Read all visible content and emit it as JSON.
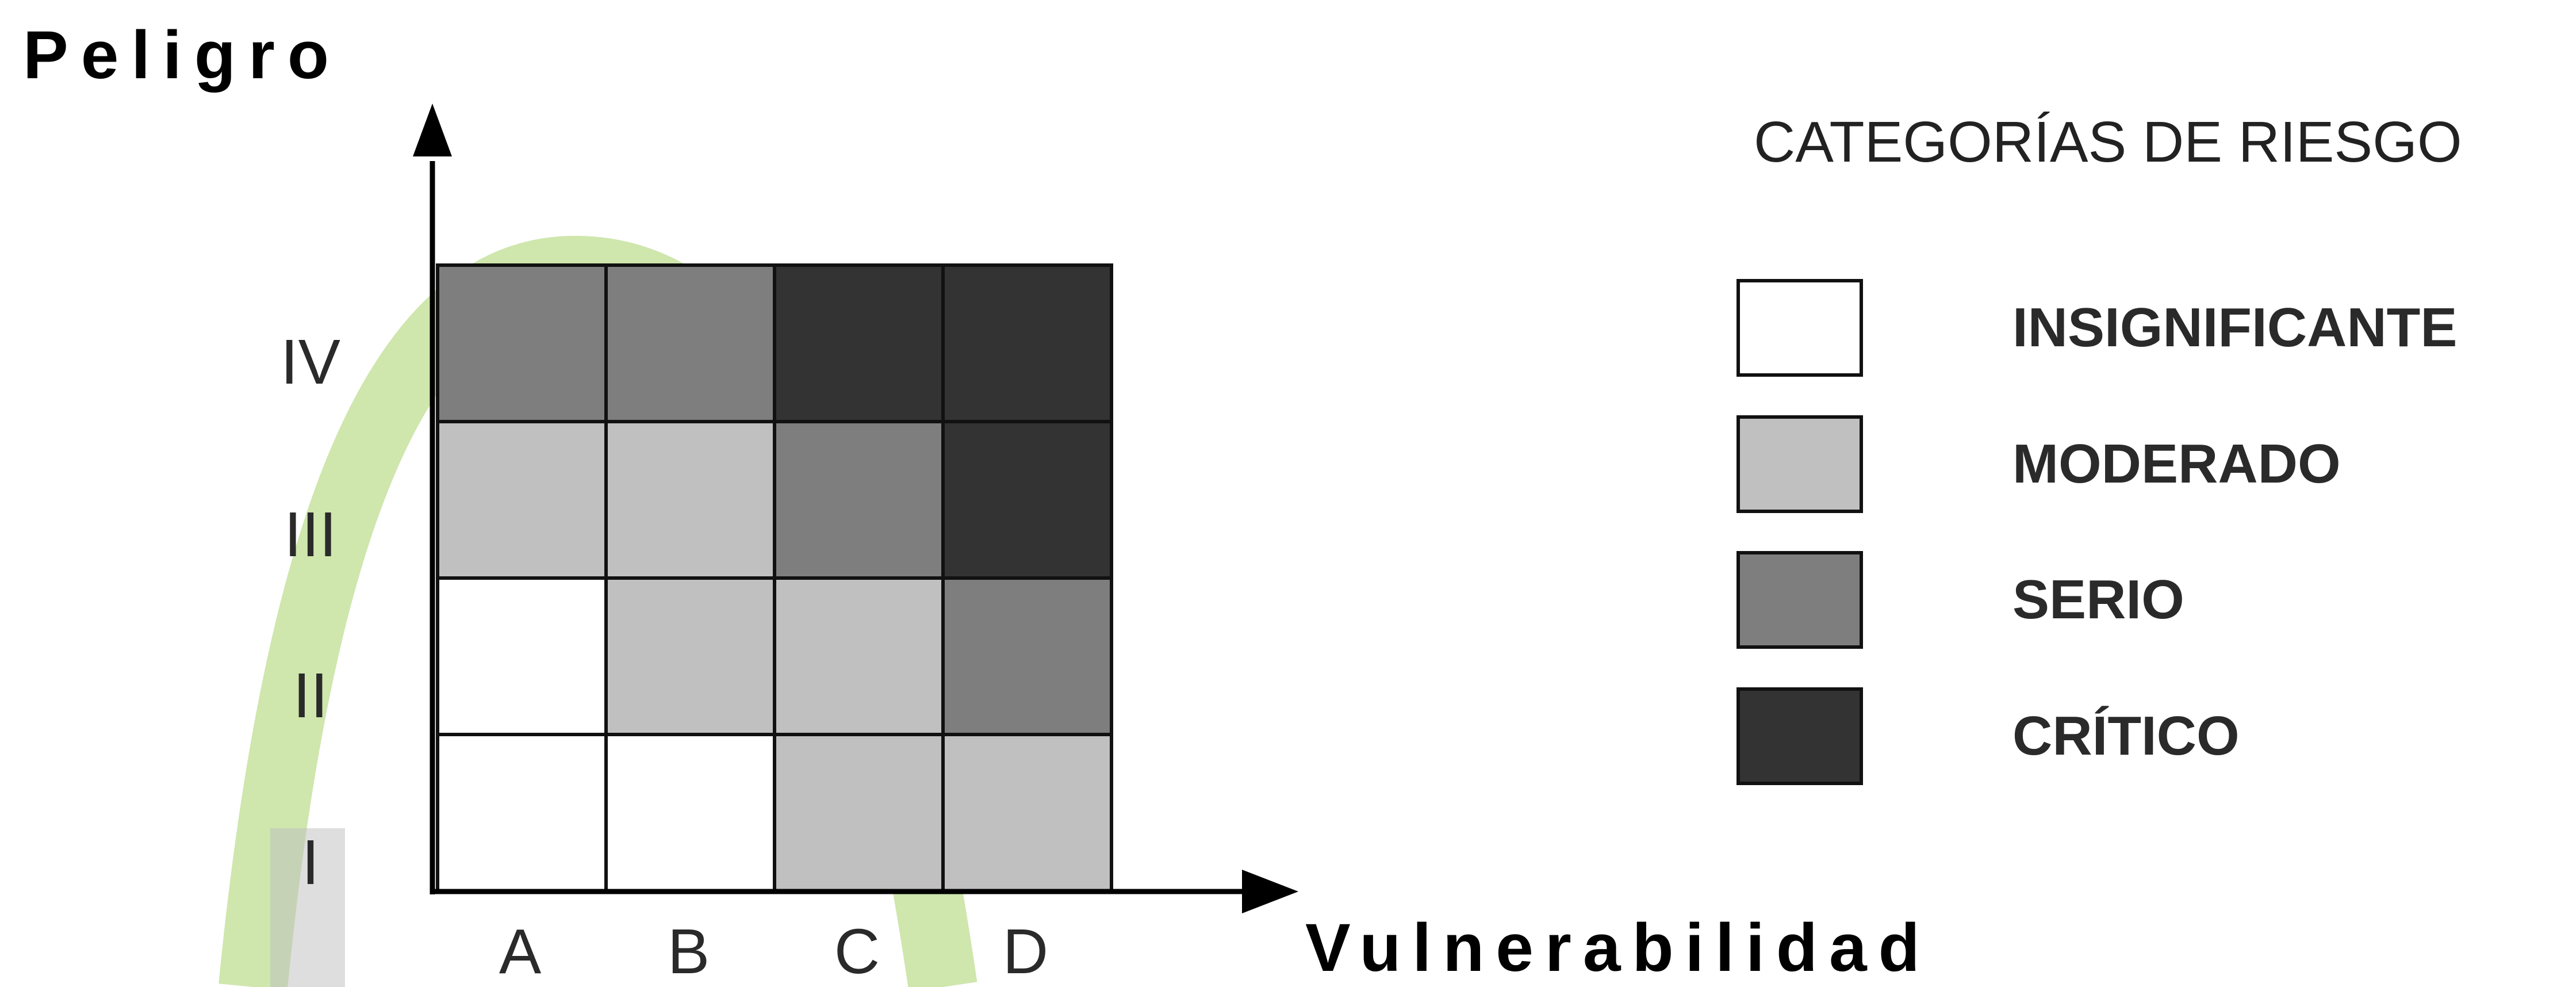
{
  "axes": {
    "y_title": "Peligro",
    "x_title": "Vulnerabilidad"
  },
  "matrix": {
    "rows": [
      "IV",
      "III",
      "II",
      "I"
    ],
    "columns": [
      "A",
      "B",
      "C",
      "D"
    ],
    "cells": [
      [
        "SERIO",
        "SERIO",
        "CRÍTICO",
        "CRÍTICO"
      ],
      [
        "MODERADO",
        "MODERADO",
        "SERIO",
        "CRÍTICO"
      ],
      [
        "INSIGNIFICANTE",
        "MODERADO",
        "MODERADO",
        "SERIO"
      ],
      [
        "INSIGNIFICANTE",
        "INSIGNIFICANTE",
        "MODERADO",
        "MODERADO"
      ]
    ]
  },
  "legend": {
    "title": "CATEGORÍAS DE RIESGO",
    "items": [
      {
        "label": "INSIGNIFICANTE",
        "color": "#ffffff"
      },
      {
        "label": "MODERADO",
        "color": "#c0c0c0"
      },
      {
        "label": "SERIO",
        "color": "#7e7e7e"
      },
      {
        "label": "CRÍTICO",
        "color": "#333333"
      }
    ]
  }
}
